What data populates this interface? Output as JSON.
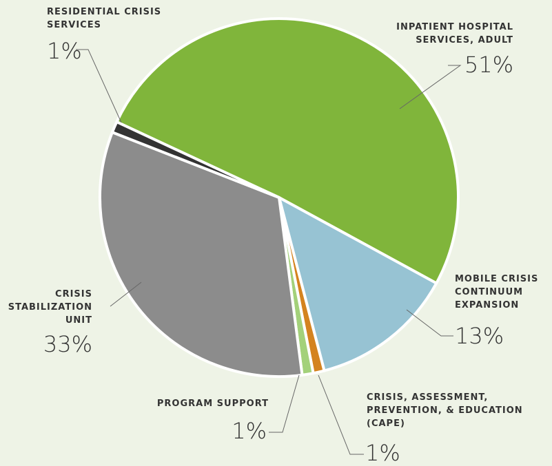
{
  "chart_data": {
    "type": "pie",
    "categories": [
      "INPATIENT HOSPITAL SERVICES, ADULT",
      "MOBILE CRISIS CONTINUUM EXPANSION",
      "CRISIS, ASSESSMENT, PREVENTION, & EDUCATION (CAPE)",
      "PROGRAM SUPPORT",
      "CRISIS STABILIZATION UNIT",
      "RESIDENTIAL CRISIS SERVICES"
    ],
    "values": [
      51,
      13,
      1,
      1,
      33,
      1
    ],
    "value_labels": [
      "51%",
      "13%",
      "1%",
      "1%",
      "33%",
      "1%"
    ],
    "colors": [
      "#80b53b",
      "#97c3d3",
      "#d4831f",
      "#a3d17a",
      "#8c8c8c",
      "#333333"
    ]
  }
}
